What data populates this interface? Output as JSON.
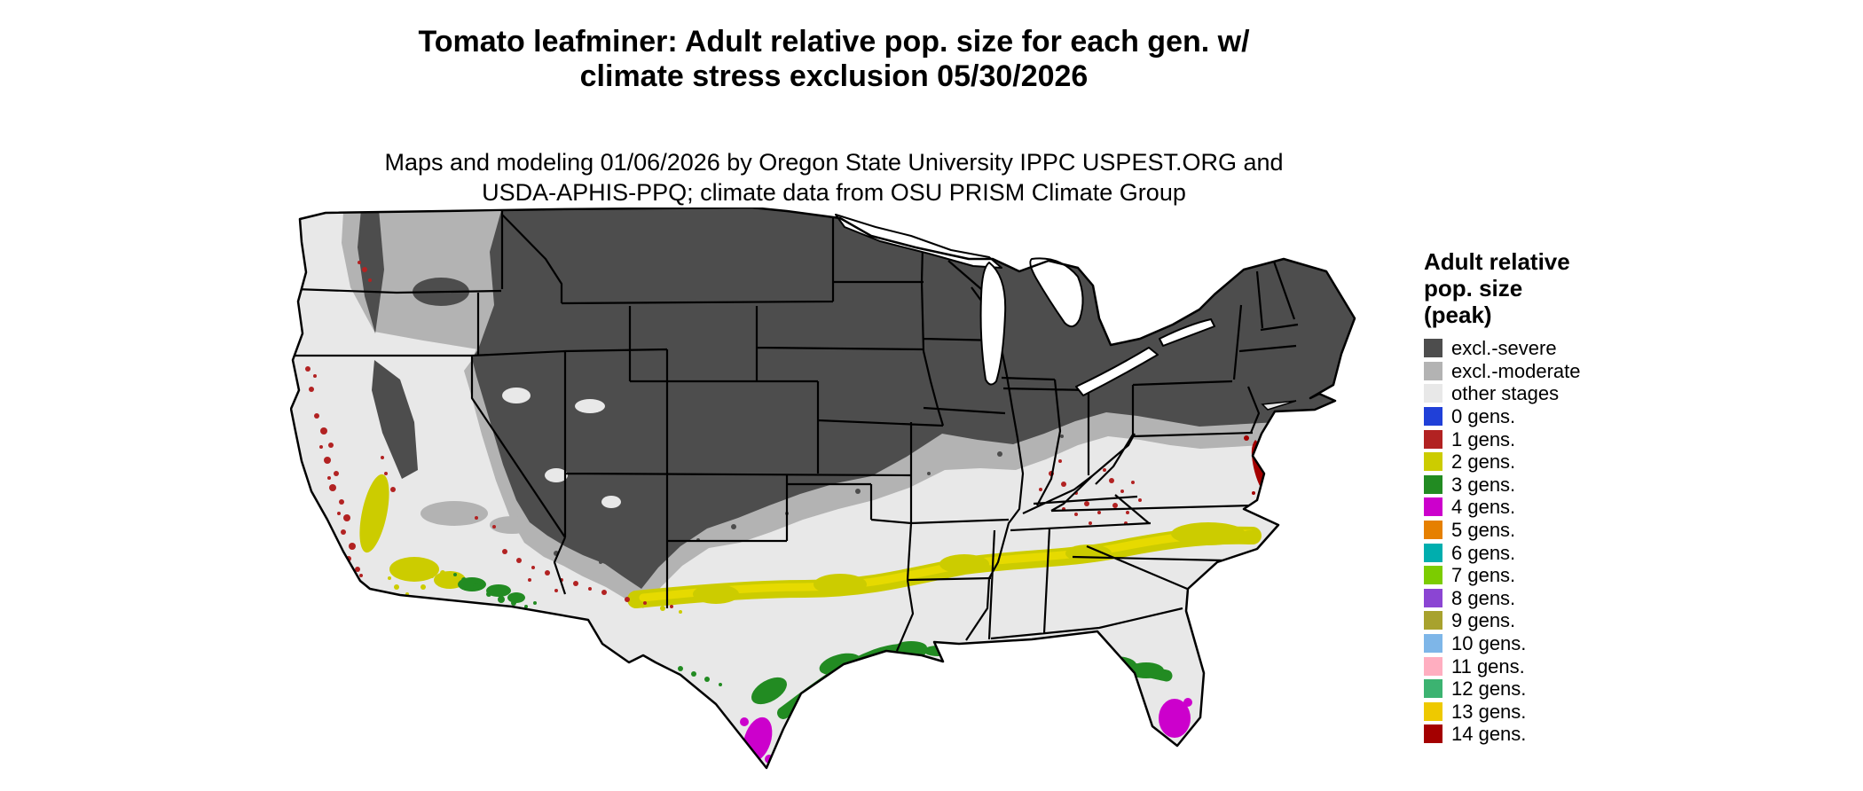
{
  "title": {
    "line1": "Tomato leafminer: Adult relative pop. size for each gen. w/",
    "line2": "climate stress exclusion 05/30/2026"
  },
  "subtitle": {
    "line1": "Maps and modeling 01/06/2026 by Oregon State University IPPC USPEST.ORG and",
    "line2": "USDA-APHIS-PPQ; climate data from OSU PRISM Climate Group"
  },
  "legend": {
    "title_line1": "Adult relative",
    "title_line2": "pop. size",
    "title_line3": "(peak)",
    "items": [
      {
        "label": "excl.-severe",
        "color": "#4D4D4D"
      },
      {
        "label": "excl.-moderate",
        "color": "#B3B3B3"
      },
      {
        "label": "other stages",
        "color": "#E8E8E8"
      },
      {
        "label": "0 gens.",
        "color": "#2040D8"
      },
      {
        "label": "1 gens.",
        "color": "#B22222"
      },
      {
        "label": "2 gens.",
        "color": "#CCCC00"
      },
      {
        "label": "3 gens.",
        "color": "#228B22"
      },
      {
        "label": "4 gens.",
        "color": "#CC00CC"
      },
      {
        "label": "5 gens.",
        "color": "#E68000"
      },
      {
        "label": "6 gens.",
        "color": "#00AEAE"
      },
      {
        "label": "7 gens.",
        "color": "#7CCC00"
      },
      {
        "label": "8 gens.",
        "color": "#8B45D3"
      },
      {
        "label": "9 gens.",
        "color": "#A8A22E"
      },
      {
        "label": "10 gens.",
        "color": "#7EB6E8"
      },
      {
        "label": "11 gens.",
        "color": "#FFAEC0"
      },
      {
        "label": "12 gens.",
        "color": "#3CB371"
      },
      {
        "label": "13 gens.",
        "color": "#EEC900"
      },
      {
        "label": "14 gens.",
        "color": "#A40000"
      }
    ]
  },
  "chart_data": {
    "type": "choropleth_map",
    "region": "contiguous United States",
    "map_date": "05/30/2026",
    "model_date": "01/06/2026",
    "legend_classes": [
      "excl.-severe",
      "excl.-moderate",
      "other stages",
      "0 gens.",
      "1 gens.",
      "2 gens.",
      "3 gens.",
      "4 gens.",
      "5 gens.",
      "6 gens.",
      "7 gens.",
      "8 gens.",
      "9 gens.",
      "10 gens.",
      "11 gens.",
      "12 gens.",
      "13 gens.",
      "14 gens."
    ]
  }
}
